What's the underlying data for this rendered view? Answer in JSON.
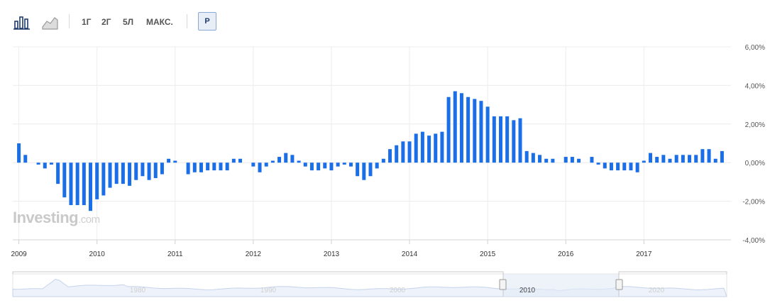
{
  "toolbar": {
    "bar_chart_icon": "bar-chart-icon",
    "area_chart_icon": "area-chart-icon",
    "ranges": [
      "1Г",
      "2Г",
      "5Л",
      "МАКС."
    ],
    "active": "Р"
  },
  "colors": {
    "bar": "#1a6fe8",
    "grid": "#ececec",
    "accent": "#1d3b6e"
  },
  "watermark": {
    "main": "Investing",
    "suffix": ".com"
  },
  "chart_data": {
    "type": "bar",
    "ylim": [
      -4,
      6
    ],
    "y_ticks": [
      "6,00%",
      "4,00%",
      "2,00%",
      "0,00%",
      "-2,00%",
      "-4,00%"
    ],
    "x_ticks": [
      "2009",
      "2010",
      "2011",
      "2012",
      "2013",
      "2014",
      "2015",
      "2016",
      "2017"
    ],
    "grid": true,
    "series": [
      {
        "values": [
          1.0,
          0.4,
          0.0,
          -0.1,
          -0.3,
          -0.1,
          -1.1,
          -1.8,
          -2.2,
          -2.2,
          -2.2,
          -2.5,
          -1.9,
          -1.7,
          -1.3,
          -1.1,
          -1.1,
          -1.2,
          -0.9,
          -0.7,
          -0.9,
          -0.8,
          -0.6,
          0.2,
          0.1,
          0.0,
          -0.6,
          -0.5,
          -0.5,
          -0.4,
          -0.4,
          -0.4,
          -0.4,
          0.2,
          0.2,
          0.0,
          -0.2,
          -0.5,
          -0.2,
          0.1,
          0.3,
          0.5,
          0.4,
          0.1,
          -0.2,
          -0.4,
          -0.4,
          -0.3,
          -0.4,
          -0.2,
          -0.1,
          -0.2,
          -0.7,
          -0.9,
          -0.7,
          -0.3,
          0.2,
          0.7,
          0.9,
          1.1,
          1.1,
          1.5,
          1.6,
          1.4,
          1.5,
          1.6,
          3.4,
          3.7,
          3.6,
          3.4,
          3.3,
          3.2,
          2.9,
          2.4,
          2.4,
          2.4,
          2.2,
          2.3,
          0.6,
          0.5,
          0.4,
          0.2,
          0.2,
          0.0,
          0.3,
          0.3,
          0.2,
          0.0,
          0.3,
          -0.1,
          -0.3,
          -0.4,
          -0.4,
          -0.4,
          -0.4,
          -0.5,
          0.1,
          0.5,
          0.3,
          0.4,
          0.2,
          0.4,
          0.4,
          0.4,
          0.4,
          0.7,
          0.7,
          0.2,
          0.6
        ]
      }
    ]
  },
  "navigator": {
    "labels": [
      "1980",
      "1990",
      "2000",
      "2010",
      "2020"
    ]
  }
}
